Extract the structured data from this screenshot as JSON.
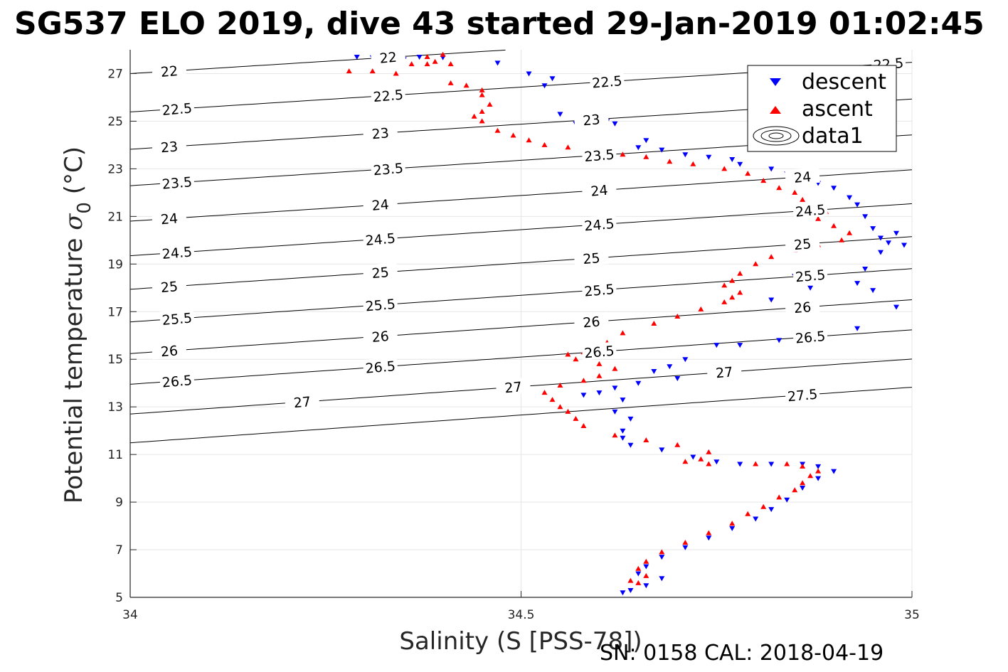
{
  "title": "SG537 ELO 2019, dive 43 started 29-Jan-2019 01:02:45",
  "footer": "SN: 0158  CAL: 2018-04-19",
  "chart_data": {
    "type": "scatter",
    "xlabel": "Salinity (S [PSS-78])",
    "ylabel_main": "Potential temperature ",
    "ylabel_sym": "σ",
    "ylabel_sub": "0",
    "ylabel_unit": " (°C)",
    "xlim": [
      34,
      35
    ],
    "ylim": [
      5,
      28
    ],
    "xticks": [
      "34",
      "34.5",
      "35"
    ],
    "yticks": [
      "5",
      "7",
      "9",
      "11",
      "13",
      "15",
      "17",
      "19",
      "21",
      "23",
      "25",
      "27"
    ],
    "grid": true,
    "legend": {
      "placement": "top-right",
      "entries": [
        "descent",
        "ascent",
        "data1"
      ]
    },
    "colors": {
      "descent": "#0000ff",
      "ascent": "#ff0000",
      "contour": "#000000",
      "grid": "#e6e6e6"
    },
    "series": [
      {
        "name": "descent",
        "marker": "triangle-down",
        "color": "#0000ff",
        "points": [
          [
            34.29,
            27.7
          ],
          [
            34.31,
            27.68
          ],
          [
            34.33,
            27.72
          ],
          [
            34.35,
            27.6
          ],
          [
            34.37,
            27.7
          ],
          [
            34.4,
            27.68
          ],
          [
            34.47,
            27.45
          ],
          [
            34.51,
            27.0
          ],
          [
            34.53,
            26.5
          ],
          [
            34.54,
            26.8
          ],
          [
            34.55,
            25.3
          ],
          [
            34.57,
            24.9
          ],
          [
            34.61,
            25.0
          ],
          [
            34.62,
            24.9
          ],
          [
            34.66,
            24.2
          ],
          [
            34.65,
            23.9
          ],
          [
            34.68,
            23.8
          ],
          [
            34.71,
            23.6
          ],
          [
            34.74,
            23.5
          ],
          [
            34.77,
            23.4
          ],
          [
            34.78,
            23.2
          ],
          [
            34.82,
            23.0
          ],
          [
            34.84,
            22.8
          ],
          [
            34.86,
            22.6
          ],
          [
            34.88,
            22.4
          ],
          [
            34.9,
            22.2
          ],
          [
            34.92,
            21.8
          ],
          [
            34.93,
            21.5
          ],
          [
            34.94,
            21.0
          ],
          [
            34.95,
            20.5
          ],
          [
            34.96,
            20.1
          ],
          [
            34.97,
            19.9
          ],
          [
            34.98,
            20.3
          ],
          [
            34.99,
            19.8
          ],
          [
            34.96,
            19.5
          ],
          [
            34.94,
            18.8
          ],
          [
            34.93,
            18.2
          ],
          [
            34.95,
            17.9
          ],
          [
            34.98,
            17.2
          ],
          [
            34.93,
            16.3
          ],
          [
            34.85,
            18.5
          ],
          [
            34.88,
            18.6
          ],
          [
            34.87,
            18.0
          ],
          [
            34.82,
            17.5
          ],
          [
            34.83,
            15.8
          ],
          [
            34.78,
            15.6
          ],
          [
            34.75,
            15.6
          ],
          [
            34.71,
            15.0
          ],
          [
            34.69,
            14.7
          ],
          [
            34.7,
            14.2
          ],
          [
            34.67,
            14.5
          ],
          [
            34.65,
            14.0
          ],
          [
            34.62,
            13.8
          ],
          [
            34.6,
            13.6
          ],
          [
            34.58,
            13.5
          ],
          [
            34.63,
            13.3
          ],
          [
            34.62,
            12.8
          ],
          [
            34.64,
            12.5
          ],
          [
            34.63,
            12.0
          ],
          [
            34.63,
            11.7
          ],
          [
            34.64,
            11.4
          ],
          [
            34.68,
            11.2
          ],
          [
            34.72,
            10.9
          ],
          [
            34.75,
            10.7
          ],
          [
            34.78,
            10.6
          ],
          [
            34.82,
            10.6
          ],
          [
            34.86,
            10.6
          ],
          [
            34.88,
            10.5
          ],
          [
            34.9,
            10.3
          ],
          [
            34.88,
            10.0
          ],
          [
            34.86,
            9.6
          ],
          [
            34.84,
            9.1
          ],
          [
            34.82,
            8.7
          ],
          [
            34.8,
            8.3
          ],
          [
            34.77,
            7.9
          ],
          [
            34.74,
            7.5
          ],
          [
            34.71,
            7.1
          ],
          [
            34.68,
            6.7
          ],
          [
            34.66,
            6.3
          ],
          [
            34.65,
            6.0
          ],
          [
            34.68,
            5.8
          ],
          [
            34.66,
            5.5
          ],
          [
            34.64,
            5.3
          ],
          [
            34.63,
            5.2
          ]
        ]
      },
      {
        "name": "ascent",
        "marker": "triangle-up",
        "color": "#ff0000",
        "points": [
          [
            34.28,
            27.1
          ],
          [
            34.31,
            27.1
          ],
          [
            34.34,
            27.0
          ],
          [
            34.36,
            27.4
          ],
          [
            34.38,
            27.4
          ],
          [
            34.39,
            27.5
          ],
          [
            34.41,
            27.4
          ],
          [
            34.4,
            27.8
          ],
          [
            34.38,
            27.7
          ],
          [
            34.41,
            26.6
          ],
          [
            34.43,
            26.5
          ],
          [
            34.45,
            26.3
          ],
          [
            34.45,
            26.1
          ],
          [
            34.46,
            25.7
          ],
          [
            34.45,
            25.4
          ],
          [
            34.44,
            25.2
          ],
          [
            34.45,
            25.0
          ],
          [
            34.47,
            24.6
          ],
          [
            34.49,
            24.4
          ],
          [
            34.51,
            24.2
          ],
          [
            34.53,
            24.0
          ],
          [
            34.56,
            23.9
          ],
          [
            34.59,
            23.7
          ],
          [
            34.63,
            23.6
          ],
          [
            34.66,
            23.5
          ],
          [
            34.69,
            23.3
          ],
          [
            34.72,
            23.2
          ],
          [
            34.76,
            23.0
          ],
          [
            34.79,
            22.8
          ],
          [
            34.81,
            22.5
          ],
          [
            34.83,
            22.2
          ],
          [
            34.85,
            22.0
          ],
          [
            34.86,
            21.7
          ],
          [
            34.87,
            21.5
          ],
          [
            34.89,
            21.2
          ],
          [
            34.88,
            20.9
          ],
          [
            34.9,
            20.6
          ],
          [
            34.92,
            20.3
          ],
          [
            34.91,
            20.0
          ],
          [
            34.88,
            19.8
          ],
          [
            34.85,
            19.6
          ],
          [
            34.82,
            19.3
          ],
          [
            34.8,
            19.0
          ],
          [
            34.78,
            18.6
          ],
          [
            34.77,
            18.3
          ],
          [
            34.76,
            18.1
          ],
          [
            34.78,
            17.8
          ],
          [
            34.77,
            17.6
          ],
          [
            34.76,
            17.4
          ],
          [
            34.73,
            17.1
          ],
          [
            34.7,
            16.8
          ],
          [
            34.67,
            16.5
          ],
          [
            34.63,
            16.1
          ],
          [
            34.61,
            15.7
          ],
          [
            34.58,
            15.3
          ],
          [
            34.56,
            15.2
          ],
          [
            34.57,
            15.0
          ],
          [
            34.6,
            14.8
          ],
          [
            34.62,
            14.6
          ],
          [
            34.6,
            14.3
          ],
          [
            34.58,
            14.1
          ],
          [
            34.55,
            13.9
          ],
          [
            34.53,
            13.6
          ],
          [
            34.54,
            13.3
          ],
          [
            34.55,
            13.0
          ],
          [
            34.56,
            12.8
          ],
          [
            34.57,
            12.5
          ],
          [
            34.58,
            12.2
          ],
          [
            34.62,
            11.8
          ],
          [
            34.66,
            11.6
          ],
          [
            34.7,
            11.4
          ],
          [
            34.74,
            11.1
          ],
          [
            34.73,
            10.8
          ],
          [
            34.71,
            10.7
          ],
          [
            34.74,
            10.6
          ],
          [
            34.8,
            10.6
          ],
          [
            34.84,
            10.6
          ],
          [
            34.86,
            10.5
          ],
          [
            34.88,
            10.3
          ],
          [
            34.87,
            10.1
          ],
          [
            34.86,
            9.8
          ],
          [
            34.85,
            9.5
          ],
          [
            34.83,
            9.2
          ],
          [
            34.81,
            8.8
          ],
          [
            34.79,
            8.5
          ],
          [
            34.77,
            8.1
          ],
          [
            34.74,
            7.7
          ],
          [
            34.71,
            7.3
          ],
          [
            34.68,
            6.9
          ],
          [
            34.66,
            6.5
          ],
          [
            34.65,
            6.2
          ],
          [
            34.66,
            5.9
          ],
          [
            34.64,
            5.7
          ],
          [
            34.65,
            5.6
          ]
        ]
      }
    ],
    "contours": [
      {
        "level": 22,
        "labels": [
          "22",
          "22"
        ]
      },
      {
        "level": 22.5,
        "labels": [
          "22.5",
          "22.5",
          "22.5",
          "22.5"
        ]
      },
      {
        "level": 23,
        "labels": [
          "23",
          "23",
          "23"
        ]
      },
      {
        "level": 23.5,
        "labels": [
          "23.5",
          "23.5",
          "23.5"
        ]
      },
      {
        "level": 24,
        "labels": [
          "24",
          "24",
          "24",
          "24"
        ]
      },
      {
        "level": 24.5,
        "labels": [
          "24.5",
          "24.5",
          "24.5",
          "24.5"
        ]
      },
      {
        "level": 25,
        "labels": [
          "25",
          "25",
          "25",
          "25"
        ]
      },
      {
        "level": 25.5,
        "labels": [
          "25.5",
          "25.5",
          "25.5",
          "25.5"
        ]
      },
      {
        "level": 26,
        "labels": [
          "26",
          "26",
          "26",
          "26"
        ]
      },
      {
        "level": 26.5,
        "labels": [
          "26.5",
          "26.5",
          "26.5",
          "26.5"
        ]
      },
      {
        "level": 27,
        "labels": [
          "27",
          "27",
          "27"
        ]
      },
      {
        "level": 27.5,
        "labels": [
          "27.5"
        ]
      }
    ]
  }
}
